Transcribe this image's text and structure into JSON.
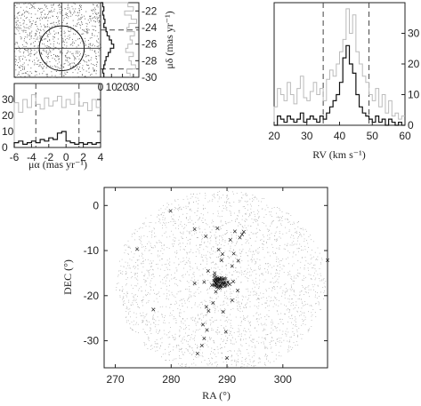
{
  "chart_data": [
    {
      "type": "scatter",
      "panel": "proper-motion-plane",
      "xlim": [
        -6,
        4
      ],
      "ylim": [
        -30,
        -21
      ],
      "selection_circle": {
        "center": [
          -0.5,
          -26.5
        ],
        "radius_mas_yr": 2.6
      },
      "crosshair": [
        -0.5,
        -26.5
      ],
      "points": "dense field of grey field-star proper motions filling the panel"
    },
    {
      "type": "line",
      "panel": "mu-alpha-histogram",
      "xlabel": "μα (mas yr⁻¹)",
      "xlim": [
        -6,
        4
      ],
      "ylim": [
        0,
        40
      ],
      "xticks": [
        "-6",
        "-4",
        "-2",
        "0",
        "2",
        "4"
      ],
      "yticks": [
        "0",
        "10",
        "20",
        "30"
      ],
      "cut_lines": [
        -3.5,
        1.5
      ],
      "x": [
        -6.0,
        -5.5,
        -5.0,
        -4.5,
        -4.0,
        -3.5,
        -3.0,
        -2.5,
        -2.0,
        -1.5,
        -1.0,
        -0.5,
        0.0,
        0.5,
        1.0,
        1.5,
        2.0,
        2.5,
        3.0,
        3.5
      ],
      "series": [
        {
          "values": [
            28,
            22,
            30,
            25,
            33,
            27,
            24,
            31,
            26,
            29,
            32,
            25,
            30,
            27,
            34,
            26,
            28,
            23,
            30,
            25
          ]
        },
        {
          "values": [
            3,
            4,
            2,
            3,
            4,
            3,
            5,
            4,
            6,
            5,
            9,
            10,
            4,
            3,
            2,
            3,
            2,
            3,
            2,
            3
          ]
        }
      ]
    },
    {
      "type": "line",
      "panel": "mu-delta-histogram",
      "ylabel": "μδ (mas yr⁻¹)",
      "ylim": [
        -30,
        -21
      ],
      "xlim": [
        0,
        35
      ],
      "xticks": [
        "0",
        "10",
        "20",
        "30"
      ],
      "yticks": [
        "-22",
        "-24",
        "-26",
        "-28",
        "-30"
      ],
      "cut_lines": [
        -24.3,
        -29
      ],
      "y": [
        -21.0,
        -21.5,
        -22.0,
        -22.5,
        -23.0,
        -23.5,
        -24.0,
        -24.5,
        -25.0,
        -25.5,
        -26.0,
        -26.5,
        -27.0,
        -27.5,
        -28.0,
        -28.5,
        -29.0,
        -29.5
      ],
      "series": [
        {
          "values": [
            25,
            30,
            22,
            28,
            33,
            26,
            24,
            31,
            27,
            29,
            25,
            23,
            30,
            26,
            28,
            32,
            24,
            27
          ]
        },
        {
          "values": [
            2,
            3,
            2,
            3,
            4,
            3,
            5,
            6,
            8,
            10,
            12,
            9,
            7,
            5,
            4,
            3,
            2,
            3
          ]
        }
      ]
    },
    {
      "type": "line",
      "panel": "radial-velocity-histogram",
      "xlabel": "RV (km s⁻¹)",
      "xlim": [
        20,
        60
      ],
      "ylim": [
        0,
        40
      ],
      "xticks": [
        "20",
        "30",
        "40",
        "50",
        "60"
      ],
      "yticks": [
        "0",
        "10",
        "20",
        "30"
      ],
      "cut_lines": [
        35,
        49
      ],
      "x": [
        20,
        21,
        22,
        23,
        24,
        25,
        26,
        27,
        28,
        29,
        30,
        31,
        32,
        33,
        34,
        35,
        36,
        37,
        38,
        39,
        40,
        41,
        42,
        43,
        44,
        45,
        46,
        47,
        48,
        49,
        50,
        51,
        52,
        53,
        54,
        55,
        56,
        57,
        58,
        59
      ],
      "series": [
        {
          "values": [
            6,
            12,
            10,
            8,
            14,
            10,
            7,
            12,
            16,
            9,
            8,
            11,
            14,
            10,
            12,
            8,
            15,
            18,
            16,
            20,
            24,
            28,
            38,
            30,
            36,
            24,
            20,
            16,
            14,
            10,
            8,
            12,
            6,
            10,
            4,
            8,
            3,
            4,
            2,
            3
          ]
        },
        {
          "values": [
            0,
            3,
            2,
            1,
            3,
            2,
            1,
            2,
            4,
            1,
            2,
            3,
            2,
            1,
            3,
            2,
            4,
            6,
            8,
            10,
            14,
            22,
            26,
            20,
            17,
            10,
            6,
            4,
            3,
            2,
            1,
            3,
            1,
            2,
            0,
            2,
            1,
            0,
            1,
            0
          ]
        }
      ]
    },
    {
      "type": "scatter",
      "panel": "sky-map",
      "xlabel": "RA (°)",
      "ylabel": "DEC (°)",
      "xlim": [
        268,
        308
      ],
      "ylim": [
        -36,
        4
      ],
      "xticks": [
        "270",
        "280",
        "290",
        "300"
      ],
      "yticks": [
        "0",
        "-10",
        "-20",
        "-30"
      ],
      "members": [
        [
          279.9,
          -1.2
        ],
        [
          284.2,
          -5.3
        ],
        [
          286.2,
          -6.8
        ],
        [
          288.3,
          -5.1
        ],
        [
          290.6,
          -7.6
        ],
        [
          291.4,
          -5.8
        ],
        [
          292.3,
          -7.1
        ],
        [
          292.7,
          -6.4
        ],
        [
          293.0,
          -5.9
        ],
        [
          273.9,
          -9.7
        ],
        [
          288.5,
          -9.8
        ],
        [
          289.2,
          -10.8
        ],
        [
          289.0,
          -12.2
        ],
        [
          291.2,
          -10.7
        ],
        [
          292.0,
          -12.3
        ],
        [
          290.9,
          -13.4
        ],
        [
          286.6,
          -14.5
        ],
        [
          287.8,
          -15.0
        ],
        [
          287.7,
          -15.6
        ],
        [
          284.2,
          -17.3
        ],
        [
          285.9,
          -17.0
        ],
        [
          287.3,
          -17.7
        ],
        [
          290.5,
          -17.5
        ],
        [
          291.1,
          -16.9
        ],
        [
          291.9,
          -18.9
        ],
        [
          288.0,
          -19.2
        ],
        [
          290.9,
          -21.0
        ],
        [
          287.5,
          -21.6
        ],
        [
          286.3,
          -22.5
        ],
        [
          286.7,
          -23.4
        ],
        [
          276.8,
          -23.1
        ],
        [
          289.3,
          -23.6
        ],
        [
          285.7,
          -26.4
        ],
        [
          286.4,
          -27.6
        ],
        [
          289.8,
          -28.0
        ],
        [
          285.9,
          -29.5
        ],
        [
          285.5,
          -31.1
        ],
        [
          284.7,
          -32.8
        ],
        [
          290.0,
          -33.8
        ],
        [
          308.0,
          -12.2
        ],
        [
          289.5,
          -16.2
        ],
        [
          288.3,
          -16.9
        ]
      ],
      "core": {
        "center": [
          288.8,
          -17.0
        ],
        "extent_deg": 1.4
      }
    }
  ]
}
